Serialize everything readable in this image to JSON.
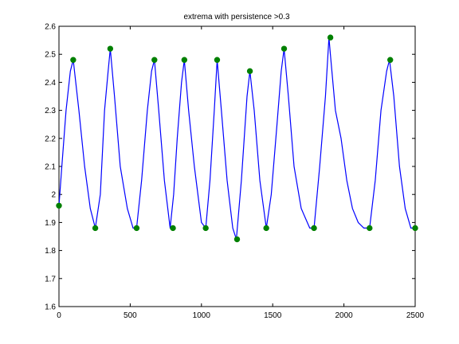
{
  "chart_data": {
    "type": "line",
    "title": "extrema with persistence >0.3",
    "xlabel": "",
    "ylabel": "",
    "xlim": [
      0,
      2500
    ],
    "ylim": [
      1.6,
      2.6
    ],
    "xticks": [
      0,
      500,
      1000,
      1500,
      2000,
      2500
    ],
    "yticks": [
      1.6,
      1.7,
      1.8,
      1.9,
      2.0,
      2.1,
      2.2,
      2.3,
      2.4,
      2.5,
      2.6
    ],
    "xtick_labels": [
      "0",
      "500",
      "1000",
      "1500",
      "2000",
      "2500"
    ],
    "ytick_labels": [
      "1.6",
      "1.7",
      "1.8",
      "1.9",
      "2",
      "2.1",
      "2.2",
      "2.3",
      "2.4",
      "2.5",
      "2.6"
    ],
    "grid": false,
    "series": [
      {
        "color": "#0000ff",
        "style": "line",
        "x": [
          0,
          20,
          50,
          80,
          100,
          140,
          180,
          220,
          255,
          290,
          320,
          345,
          360,
          390,
          430,
          480,
          520,
          545,
          580,
          620,
          650,
          670,
          700,
          740,
          780,
          805,
          830,
          860,
          880,
          910,
          950,
          1000,
          1030,
          1060,
          1090,
          1110,
          1140,
          1180,
          1220,
          1245,
          1280,
          1320,
          1340,
          1370,
          1410,
          1455,
          1490,
          1530,
          1560,
          1580,
          1610,
          1650,
          1700,
          1760,
          1790,
          1830,
          1870,
          1895,
          1905,
          1940,
          1980,
          2020,
          2060,
          2100,
          2140,
          2180,
          2220,
          2260,
          2300,
          2320,
          2350,
          2390,
          2430,
          2470,
          2500
        ],
        "y": [
          1.96,
          2.1,
          2.3,
          2.44,
          2.48,
          2.3,
          2.1,
          1.95,
          1.88,
          2.0,
          2.3,
          2.44,
          2.52,
          2.35,
          2.1,
          1.95,
          1.88,
          1.88,
          2.05,
          2.3,
          2.44,
          2.48,
          2.3,
          2.05,
          1.88,
          2.0,
          2.2,
          2.4,
          2.48,
          2.3,
          2.1,
          1.9,
          1.88,
          2.05,
          2.3,
          2.48,
          2.3,
          2.05,
          1.88,
          1.84,
          2.05,
          2.35,
          2.44,
          2.3,
          2.05,
          1.88,
          2.0,
          2.25,
          2.44,
          2.52,
          2.35,
          2.1,
          1.95,
          1.88,
          1.88,
          2.1,
          2.35,
          2.56,
          2.5,
          2.3,
          2.2,
          2.05,
          1.95,
          1.9,
          1.88,
          1.88,
          2.05,
          2.3,
          2.44,
          2.48,
          2.35,
          2.1,
          1.95,
          1.88,
          1.88
        ]
      },
      {
        "color": "#008000",
        "style": "markers",
        "x": [
          0,
          100,
          255,
          360,
          545,
          670,
          800,
          880,
          1030,
          1110,
          1250,
          1340,
          1455,
          1580,
          1790,
          1905,
          2180,
          2325,
          2500
        ],
        "y": [
          1.96,
          2.48,
          1.88,
          2.52,
          1.88,
          2.48,
          1.88,
          2.48,
          1.88,
          2.48,
          1.84,
          2.44,
          1.88,
          2.52,
          1.88,
          2.56,
          1.88,
          2.48,
          1.88
        ]
      }
    ],
    "colors": {
      "axes": "#000000",
      "background": "#ffffff",
      "line": "#0000ff",
      "marker": "#008000"
    }
  }
}
